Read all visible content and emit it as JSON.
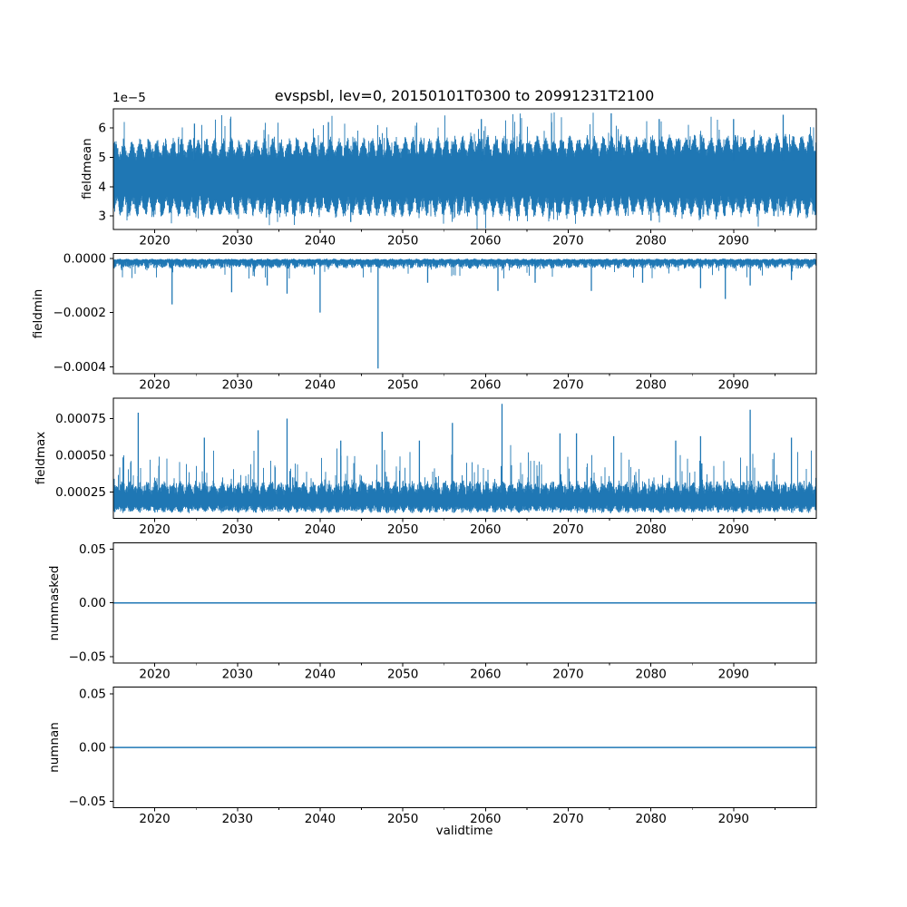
{
  "colors": {
    "line": "#1f77b4",
    "axis": "#000000",
    "text": "#000000",
    "background": "#ffffff"
  },
  "chart_data": {
    "type": "line",
    "title": "evspsbl, lev=0, 20150101T0300 to 20991231T2100",
    "xlabel": "validtime",
    "grid": false,
    "legend": "none",
    "x_range": [
      2015,
      2100
    ],
    "x_major_ticks": [
      2020,
      2030,
      2040,
      2050,
      2060,
      2070,
      2080,
      2090
    ],
    "x_minor_ticks": [
      2025,
      2035,
      2045,
      2055,
      2065,
      2075,
      2085,
      2095
    ],
    "panels": [
      {
        "name": "fieldmean",
        "ylabel": "fieldmean",
        "offset_text": "1e−5",
        "ylim": [
          2.55e-05,
          6.65e-05
        ],
        "yticks": [
          {
            "value": 3e-05,
            "label": "3"
          },
          {
            "value": 4e-05,
            "label": "4"
          },
          {
            "value": 5e-05,
            "label": "5"
          },
          {
            "value": 6e-05,
            "label": "6"
          }
        ],
        "series": {
          "kind": "band",
          "seed": 20150101,
          "hi": {
            "base": 4.9e-05,
            "trend": 1.8e-06,
            "amp": 4.5e-06,
            "phase": 0.0,
            "noise": 3e-06,
            "spike_p": 0.1,
            "spike_max": 1.05e-05
          },
          "lo": {
            "base": 3.7e-05,
            "trend": 0,
            "amp": -4.5e-06,
            "phase": 2.2,
            "noise": -3e-06,
            "spike_p": 0.1,
            "spike_max": -5.5e-06
          },
          "spike_anchor_hi": 4.9e-05,
          "spike_anchor_lo": 3.6e-05,
          "spikes": [
            [
              2024.8,
              6.15e-05
            ],
            [
              2041.0,
              6.2e-05
            ],
            [
              2059.5,
              6.3e-05
            ],
            [
              2068.0,
              6.2e-05
            ],
            [
              2075.2,
              6.5e-05
            ],
            [
              2081.0,
              6.3e-05
            ],
            [
              2090.0,
              6.3e-05
            ],
            [
              2096.0,
              6.45e-05
            ],
            [
              2033.5,
              2.95e-05
            ],
            [
              2043.7,
              2.8e-05
            ],
            [
              2086.0,
              2.9e-05
            ]
          ]
        }
      },
      {
        "name": "fieldmin",
        "ylabel": "fieldmin",
        "ylim": [
          -0.000426,
          1.8e-05
        ],
        "yticks": [
          {
            "value": 0,
            "label": "0.0000"
          },
          {
            "value": -0.0002,
            "label": "−0.0002"
          },
          {
            "value": -0.0004,
            "label": "−0.0004"
          }
        ],
        "series": {
          "kind": "band",
          "seed": 47,
          "hi": {
            "base": -1e-06,
            "trend": 0,
            "amp": -3e-06,
            "phase": 0.3,
            "noise": -4e-06,
            "spike_p": 0,
            "spike_max": 0
          },
          "lo": {
            "base": -1.4e-05,
            "trend": 0,
            "amp": -9e-06,
            "phase": 1.1,
            "noise": -1.6e-05,
            "spike_p": 0.08,
            "spike_max": -4.5e-05
          },
          "spike_anchor_hi": -1e-06,
          "spike_anchor_lo": -2e-06,
          "spikes": [
            [
              2022.1,
              -0.00017
            ],
            [
              2029.3,
              -0.000125
            ],
            [
              2033.6,
              -0.0001
            ],
            [
              2036.0,
              -0.00013
            ],
            [
              2040.0,
              -0.0002
            ],
            [
              2047.0,
              -0.000406
            ],
            [
              2053.0,
              -9e-05
            ],
            [
              2061.5,
              -0.00012
            ],
            [
              2066.0,
              -9e-05
            ],
            [
              2072.8,
              -0.00012
            ],
            [
              2079.0,
              -9e-05
            ],
            [
              2086.0,
              -0.00011
            ],
            [
              2089.0,
              -0.00015
            ],
            [
              2092.0,
              -0.0001
            ],
            [
              2097.0,
              -8e-05
            ]
          ]
        }
      },
      {
        "name": "fieldmax",
        "ylabel": "fieldmax",
        "ylim": [
          7e-05,
          0.00089
        ],
        "yticks": [
          {
            "value": 0.00025,
            "label": "0.00025"
          },
          {
            "value": 0.0005,
            "label": "0.00050"
          },
          {
            "value": 0.00075,
            "label": "0.00075"
          }
        ],
        "series": {
          "kind": "band",
          "seed": 99,
          "hi": {
            "base": 0.00023,
            "trend": 0,
            "amp": 4e-05,
            "phase": 0.8,
            "noise": 6e-05,
            "spike_p": 0.17,
            "spike_max": 0.00026
          },
          "lo": {
            "base": 0.000105,
            "trend": 0,
            "amp": 2e-05,
            "phase": 3.9,
            "noise": 3.5e-05,
            "spike_p": 0,
            "spike_max": 0
          },
          "spike_anchor_hi": 0.00025,
          "spike_anchor_lo": 0.00015,
          "spikes": [
            [
              2018.0,
              0.00079
            ],
            [
              2026.0,
              0.00062
            ],
            [
              2032.5,
              0.00067
            ],
            [
              2036.0,
              0.00075
            ],
            [
              2042.5,
              0.0006
            ],
            [
              2047.5,
              0.00066
            ],
            [
              2052.0,
              0.0006
            ],
            [
              2056.0,
              0.00072
            ],
            [
              2062.0,
              0.00085
            ],
            [
              2069.0,
              0.00065
            ],
            [
              2071.0,
              0.00065
            ],
            [
              2075.5,
              0.00063
            ],
            [
              2083.0,
              0.0006
            ],
            [
              2086.0,
              0.00063
            ],
            [
              2092.0,
              0.00081
            ],
            [
              2097.0,
              0.00062
            ]
          ]
        }
      },
      {
        "name": "nummasked",
        "ylabel": "nummasked",
        "ylim": [
          -0.056,
          0.056
        ],
        "yticks": [
          {
            "value": 0.05,
            "label": "0.05"
          },
          {
            "value": 0.0,
            "label": "0.00"
          },
          {
            "value": -0.05,
            "label": "−0.05"
          }
        ],
        "series": {
          "kind": "flat",
          "value": 0.0,
          "line_width": 1.5
        }
      },
      {
        "name": "numnan",
        "ylabel": "numnan",
        "ylim": [
          -0.056,
          0.056
        ],
        "yticks": [
          {
            "value": 0.05,
            "label": "0.05"
          },
          {
            "value": 0.0,
            "label": "0.00"
          },
          {
            "value": -0.05,
            "label": "−0.05"
          }
        ],
        "series": {
          "kind": "flat",
          "value": 0.0,
          "line_width": 1.5
        }
      }
    ]
  }
}
